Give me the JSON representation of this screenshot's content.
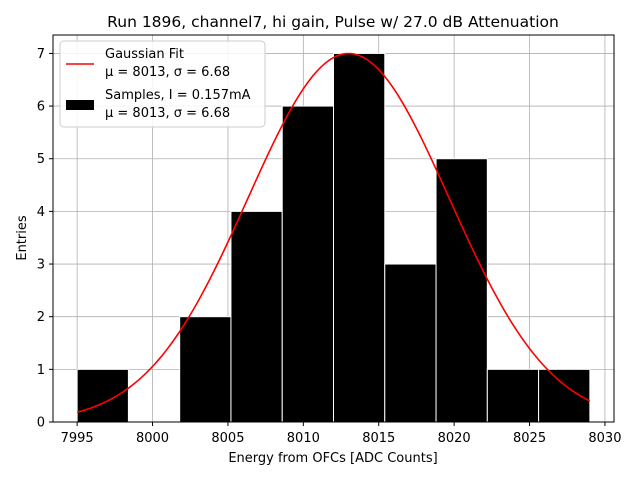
{
  "chart_data": {
    "type": "bar",
    "title": "Run 1896, channel7, hi gain, Pulse w/ 27.0 dB Attenuation",
    "xlabel": "Energy from OFCs [ADC Counts]",
    "ylabel": "Entries",
    "xlim": [
      7993.4,
      8030.6
    ],
    "ylim": [
      0,
      7.35
    ],
    "xticks": [
      7995,
      8000,
      8005,
      8010,
      8015,
      8020,
      8025,
      8030
    ],
    "yticks": [
      0,
      1,
      2,
      3,
      4,
      5,
      6,
      7
    ],
    "grid": true,
    "legend_position": "top-left",
    "histogram": {
      "name": "Samples, I = 0.157mA",
      "stats": "μ = 8013, σ = 6.68",
      "color": "#000000",
      "bin_edges": [
        7995.0,
        7998.4,
        8001.8,
        8005.2,
        8008.6,
        8012.0,
        8015.4,
        8018.8,
        8022.2,
        8025.6,
        8029.0
      ],
      "counts": [
        1,
        0,
        2,
        4,
        6,
        7,
        3,
        5,
        1,
        1
      ]
    },
    "fit": {
      "name": "Gaussian Fit",
      "stats": "μ = 8013, σ = 6.68",
      "color": "#ff0000",
      "mu": 8013.0,
      "sigma": 6.68,
      "amplitude": 7.0,
      "x_range": [
        7995.0,
        8029.0
      ]
    },
    "legend": [
      {
        "label": "Gaussian Fit",
        "stats": "μ = 8013, σ = 6.68"
      },
      {
        "label": "Samples, I = 0.157mA",
        "stats": "μ = 8013, σ = 6.68"
      }
    ]
  }
}
